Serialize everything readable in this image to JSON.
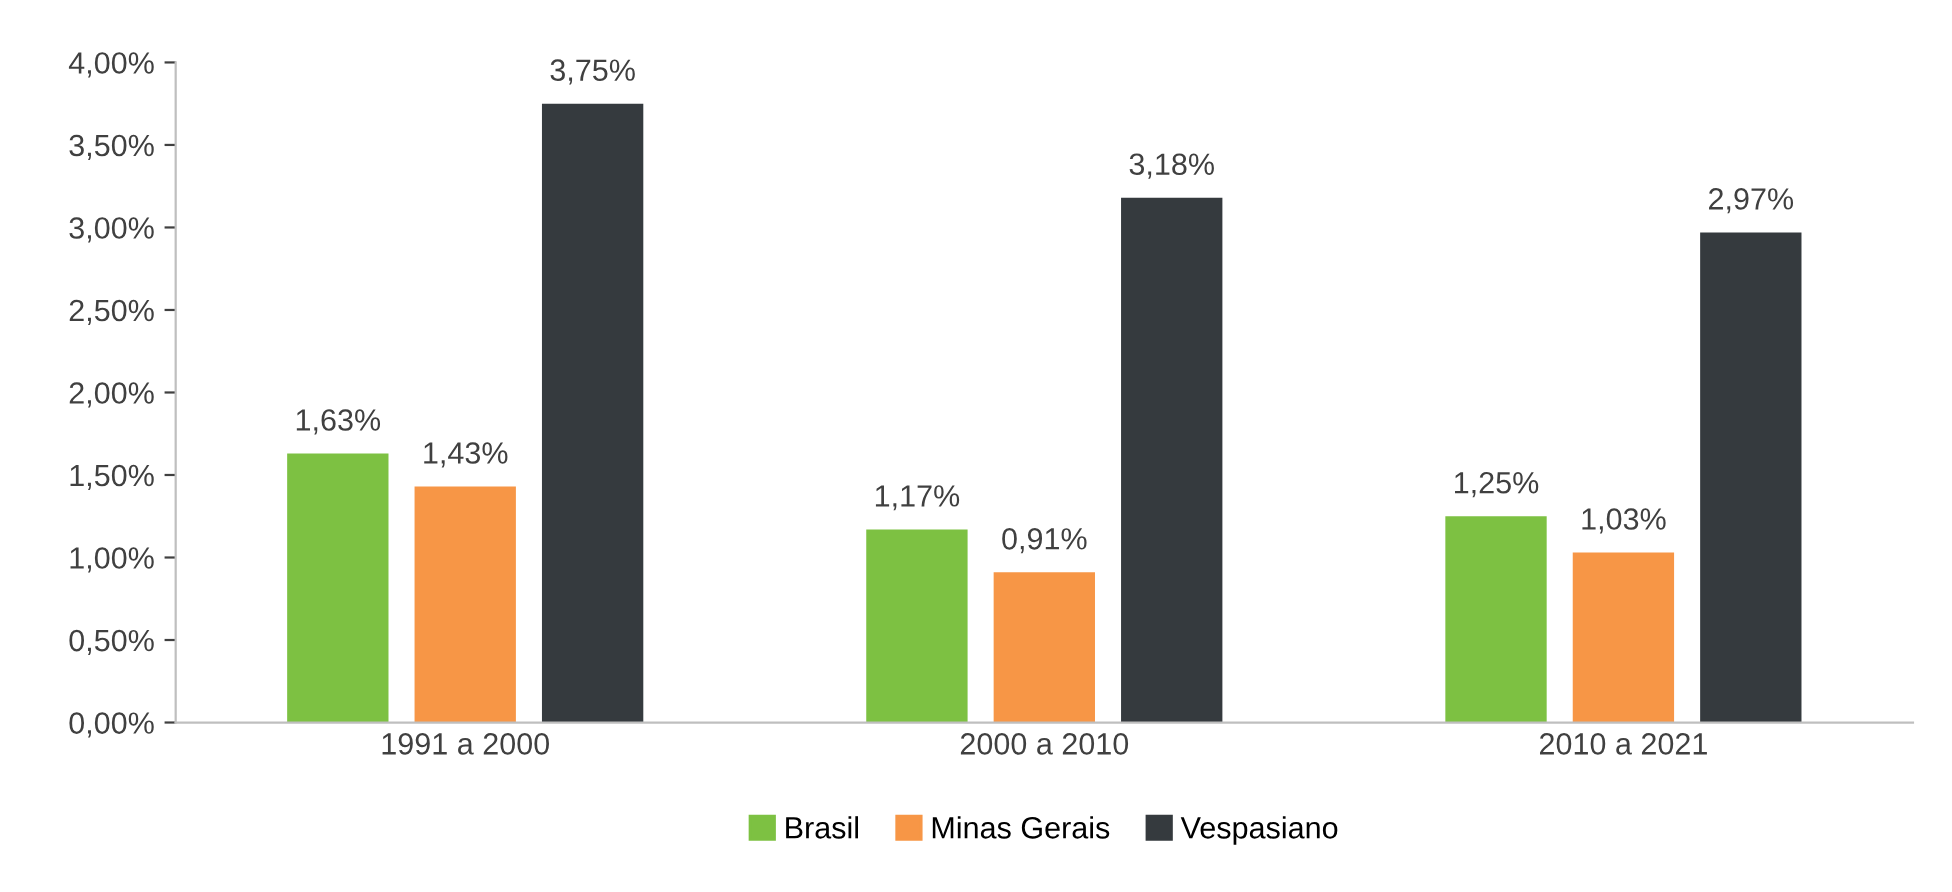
{
  "chart_data": {
    "type": "bar",
    "categories": [
      "1991 a 2000",
      "2000 a 2010",
      "2010 a 2021"
    ],
    "series": [
      {
        "name": "Brasil",
        "color": "#7dc142",
        "values": [
          1.63,
          1.17,
          1.25
        ],
        "value_labels": [
          "1,63%",
          "1,17%",
          "1,25%"
        ]
      },
      {
        "name": "Minas Gerais",
        "color": "#f79646",
        "values": [
          1.43,
          0.91,
          1.03
        ],
        "value_labels": [
          "1,43%",
          "0,91%",
          "1,03%"
        ]
      },
      {
        "name": "Vespasiano",
        "color": "#353a3e",
        "values": [
          3.75,
          3.18,
          2.97
        ],
        "value_labels": [
          "3,75%",
          "3,18%",
          "2,97%"
        ]
      }
    ],
    "ylim": [
      0,
      4
    ],
    "yticks": [
      {
        "value": 0,
        "label": "0,00%"
      },
      {
        "value": 0.5,
        "label": "0,50%"
      },
      {
        "value": 1,
        "label": "1,00%"
      },
      {
        "value": 1.5,
        "label": "1,50%"
      },
      {
        "value": 2,
        "label": "2,00%"
      },
      {
        "value": 2.5,
        "label": "2,50%"
      },
      {
        "value": 3,
        "label": "3,00%"
      },
      {
        "value": 3.5,
        "label": "3,50%"
      },
      {
        "value": 4,
        "label": "4,00%"
      }
    ],
    "grid": false,
    "legend": "bottom"
  }
}
